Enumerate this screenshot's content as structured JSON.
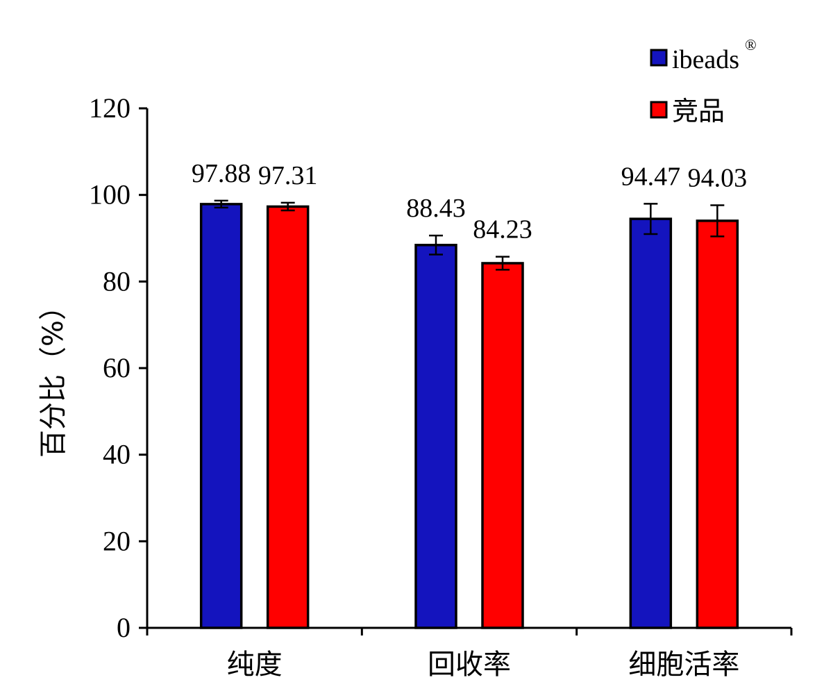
{
  "chart_data": {
    "type": "bar",
    "title": "",
    "xlabel": "",
    "ylabel": "百分比（%）",
    "ylim": [
      0,
      120
    ],
    "yticks": [
      0,
      20,
      40,
      60,
      80,
      100,
      120
    ],
    "categories": [
      "纯度",
      "回收率",
      "细胞活率"
    ],
    "series": [
      {
        "name": "ibeads",
        "name_superscript": "®",
        "color": "#1414BE",
        "values": [
          97.88,
          88.43,
          94.47
        ],
        "value_labels": [
          "97.88",
          "88.43",
          "94.47"
        ],
        "errors": [
          0.8,
          2.2,
          3.5
        ]
      },
      {
        "name": "竞品",
        "color": "#FF0000",
        "values": [
          97.31,
          84.23,
          94.03
        ],
        "value_labels": [
          "97.31",
          "84.23",
          "94.03"
        ],
        "errors": [
          0.9,
          1.5,
          3.6
        ]
      }
    ],
    "grid": false,
    "legend_position": "top-right",
    "error_bars": true,
    "data_labels": true
  }
}
